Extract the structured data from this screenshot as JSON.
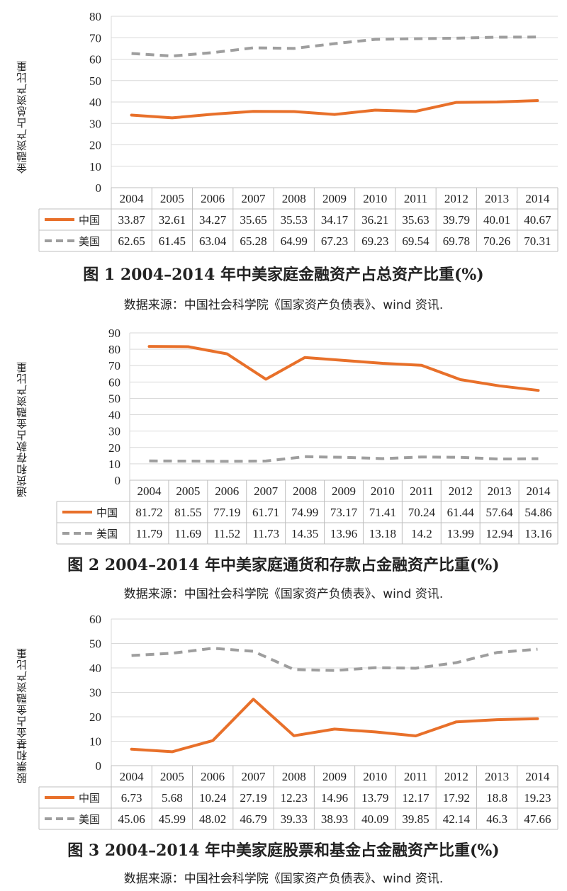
{
  "figures": [
    {
      "ylabel": "金融资产占总资产比重",
      "caption": "图 1  2004–2014 年中美家庭金融资产占总资产比重(%)",
      "source": "数据来源：中国社会科学院《国家资产负债表》、wind 资讯."
    },
    {
      "ylabel": "通货和存款占金融资产比重",
      "caption": "图 2  2004–2014 年中美家庭通货和存款占金融资产比重(%)",
      "source": "数据来源：中国社会科学院《国家资产负债表》、wind 资讯."
    },
    {
      "ylabel": "股票和基金占金融资产比重",
      "caption": "图 3  2004–2014 年中美家庭股票和基金占金融资产比重(%)",
      "source": "数据来源：中国社会科学院《国家资产负债表》、wind 资讯."
    }
  ],
  "colors": {
    "china": "#e8702a",
    "usa": "#9e9e9e"
  },
  "chart_data": [
    {
      "type": "line",
      "title": "图 1  2004–2014 年中美家庭金融资产占总资产比重(%)",
      "ylabel": "金融资产占总资产比重",
      "categories": [
        "2004",
        "2005",
        "2006",
        "2007",
        "2008",
        "2009",
        "2010",
        "2011",
        "2012",
        "2013",
        "2014"
      ],
      "ylim": [
        0,
        80
      ],
      "yticks": [
        0,
        10,
        20,
        30,
        40,
        50,
        60,
        70,
        80
      ],
      "series": [
        {
          "name": "中国",
          "style": "solid",
          "values": [
            "33.87",
            "32.61",
            "34.27",
            "35.65",
            "35.53",
            "34.17",
            "36.21",
            "35.63",
            "39.79",
            "40.01",
            "40.67"
          ]
        },
        {
          "name": "美国",
          "style": "dashed",
          "values": [
            "62.65",
            "61.45",
            "63.04",
            "65.28",
            "64.99",
            "67.23",
            "69.23",
            "69.54",
            "69.78",
            "70.26",
            "70.31"
          ]
        }
      ]
    },
    {
      "type": "line",
      "title": "图 2  2004–2014 年中美家庭通货和存款占金融资产比重(%)",
      "ylabel": "通货和存款占金融资产比重",
      "categories": [
        "2004",
        "2005",
        "2006",
        "2007",
        "2008",
        "2009",
        "2010",
        "2011",
        "2012",
        "2013",
        "2014"
      ],
      "ylim": [
        0,
        90
      ],
      "yticks": [
        0,
        10,
        20,
        30,
        40,
        50,
        60,
        70,
        80,
        90
      ],
      "series": [
        {
          "name": "中国",
          "style": "solid",
          "values": [
            "81.72",
            "81.55",
            "77.19",
            "61.71",
            "74.99",
            "73.17",
            "71.41",
            "70.24",
            "61.44",
            "57.64",
            "54.86"
          ]
        },
        {
          "name": "美国",
          "style": "dashed",
          "values": [
            "11.79",
            "11.69",
            "11.52",
            "11.73",
            "14.35",
            "13.96",
            "13.18",
            "14.2",
            "13.99",
            "12.94",
            "13.16"
          ]
        }
      ]
    },
    {
      "type": "line",
      "title": "图 3  2004–2014 年中美家庭股票和基金占金融资产比重(%)",
      "ylabel": "股票和基金占金融资产比重",
      "categories": [
        "2004",
        "2005",
        "2006",
        "2007",
        "2008",
        "2009",
        "2010",
        "2011",
        "2012",
        "2013",
        "2014"
      ],
      "ylim": [
        0,
        60
      ],
      "yticks": [
        0,
        10,
        20,
        30,
        40,
        50,
        60
      ],
      "series": [
        {
          "name": "中国",
          "style": "solid",
          "values": [
            "6.73",
            "5.68",
            "10.24",
            "27.19",
            "12.23",
            "14.96",
            "13.79",
            "12.17",
            "17.92",
            "18.8",
            "19.23"
          ]
        },
        {
          "name": "美国",
          "style": "dashed",
          "values": [
            "45.06",
            "45.99",
            "48.02",
            "46.79",
            "39.33",
            "38.93",
            "40.09",
            "39.85",
            "42.14",
            "46.3",
            "47.66"
          ]
        }
      ]
    }
  ]
}
